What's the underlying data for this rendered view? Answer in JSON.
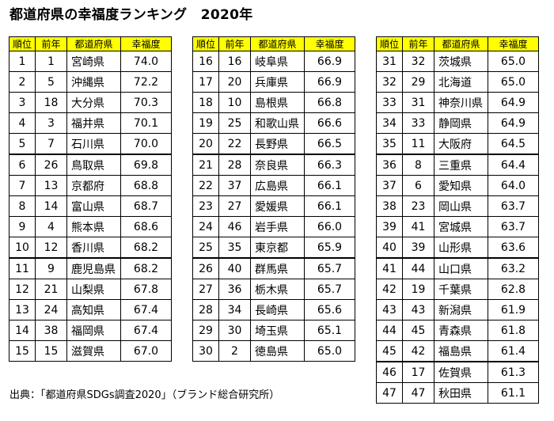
{
  "title": "都道府県の幸福度ランキング　2020年",
  "headers": [
    "順位",
    "前年",
    "都道府県",
    "幸福度"
  ],
  "rows": [
    [
      "1",
      "1",
      "宮崎県",
      "74.0"
    ],
    [
      "2",
      "5",
      "沖縄県",
      "72.2"
    ],
    [
      "3",
      "18",
      "大分県",
      "70.3"
    ],
    [
      "4",
      "3",
      "福井県",
      "70.1"
    ],
    [
      "5",
      "7",
      "石川県",
      "70.0"
    ],
    [
      "6",
      "26",
      "鳥取県",
      "69.8"
    ],
    [
      "7",
      "13",
      "京都府",
      "68.8"
    ],
    [
      "8",
      "14",
      "富山県",
      "68.7"
    ],
    [
      "9",
      "4",
      "熊本県",
      "68.6"
    ],
    [
      "10",
      "12",
      "香川県",
      "68.2"
    ],
    [
      "11",
      "9",
      "鹿児島県",
      "68.2"
    ],
    [
      "12",
      "21",
      "山梨県",
      "67.8"
    ],
    [
      "13",
      "24",
      "高知県",
      "67.4"
    ],
    [
      "14",
      "38",
      "福岡県",
      "67.4"
    ],
    [
      "15",
      "15",
      "滋賀県",
      "67.0"
    ],
    [
      "16",
      "16",
      "岐阜県",
      "66.9"
    ],
    [
      "17",
      "20",
      "兵庫県",
      "66.9"
    ],
    [
      "18",
      "10",
      "島根県",
      "66.8"
    ],
    [
      "19",
      "25",
      "和歌山県",
      "66.6"
    ],
    [
      "20",
      "22",
      "長野県",
      "66.5"
    ],
    [
      "21",
      "28",
      "奈良県",
      "66.3"
    ],
    [
      "22",
      "37",
      "広島県",
      "66.1"
    ],
    [
      "23",
      "27",
      "愛媛県",
      "66.1"
    ],
    [
      "24",
      "46",
      "岩手県",
      "66.0"
    ],
    [
      "25",
      "35",
      "東京都",
      "65.9"
    ],
    [
      "26",
      "40",
      "群馬県",
      "65.7"
    ],
    [
      "27",
      "36",
      "栃木県",
      "65.7"
    ],
    [
      "28",
      "34",
      "長崎県",
      "65.6"
    ],
    [
      "29",
      "30",
      "埼玉県",
      "65.1"
    ],
    [
      "30",
      "2",
      "徳島県",
      "65.0"
    ],
    [
      "31",
      "32",
      "茨城県",
      "65.0"
    ],
    [
      "32",
      "29",
      "北海道",
      "65.0"
    ],
    [
      "33",
      "31",
      "神奈川県",
      "64.9"
    ],
    [
      "34",
      "33",
      "静岡県",
      "64.9"
    ],
    [
      "35",
      "11",
      "大阪府",
      "64.5"
    ],
    [
      "36",
      "8",
      "三重県",
      "64.4"
    ],
    [
      "37",
      "6",
      "愛知県",
      "64.0"
    ],
    [
      "38",
      "23",
      "岡山県",
      "63.7"
    ],
    [
      "39",
      "41",
      "宮城県",
      "63.7"
    ],
    [
      "40",
      "39",
      "山形県",
      "63.6"
    ],
    [
      "41",
      "44",
      "山口県",
      "63.2"
    ],
    [
      "42",
      "19",
      "千葉県",
      "62.8"
    ],
    [
      "43",
      "43",
      "新潟県",
      "61.9"
    ],
    [
      "44",
      "45",
      "青森県",
      "61.8"
    ],
    [
      "45",
      "42",
      "福島県",
      "61.4"
    ],
    [
      "46",
      "17",
      "佐賀県",
      "61.3"
    ],
    [
      "47",
      "47",
      "秋田県",
      "61.1"
    ]
  ],
  "source": "出典：「都道府県SDGs調査2020」（ブランド総合研究所）",
  "colors": {
    "header_bg": "#ffff00",
    "border": "#000000"
  }
}
